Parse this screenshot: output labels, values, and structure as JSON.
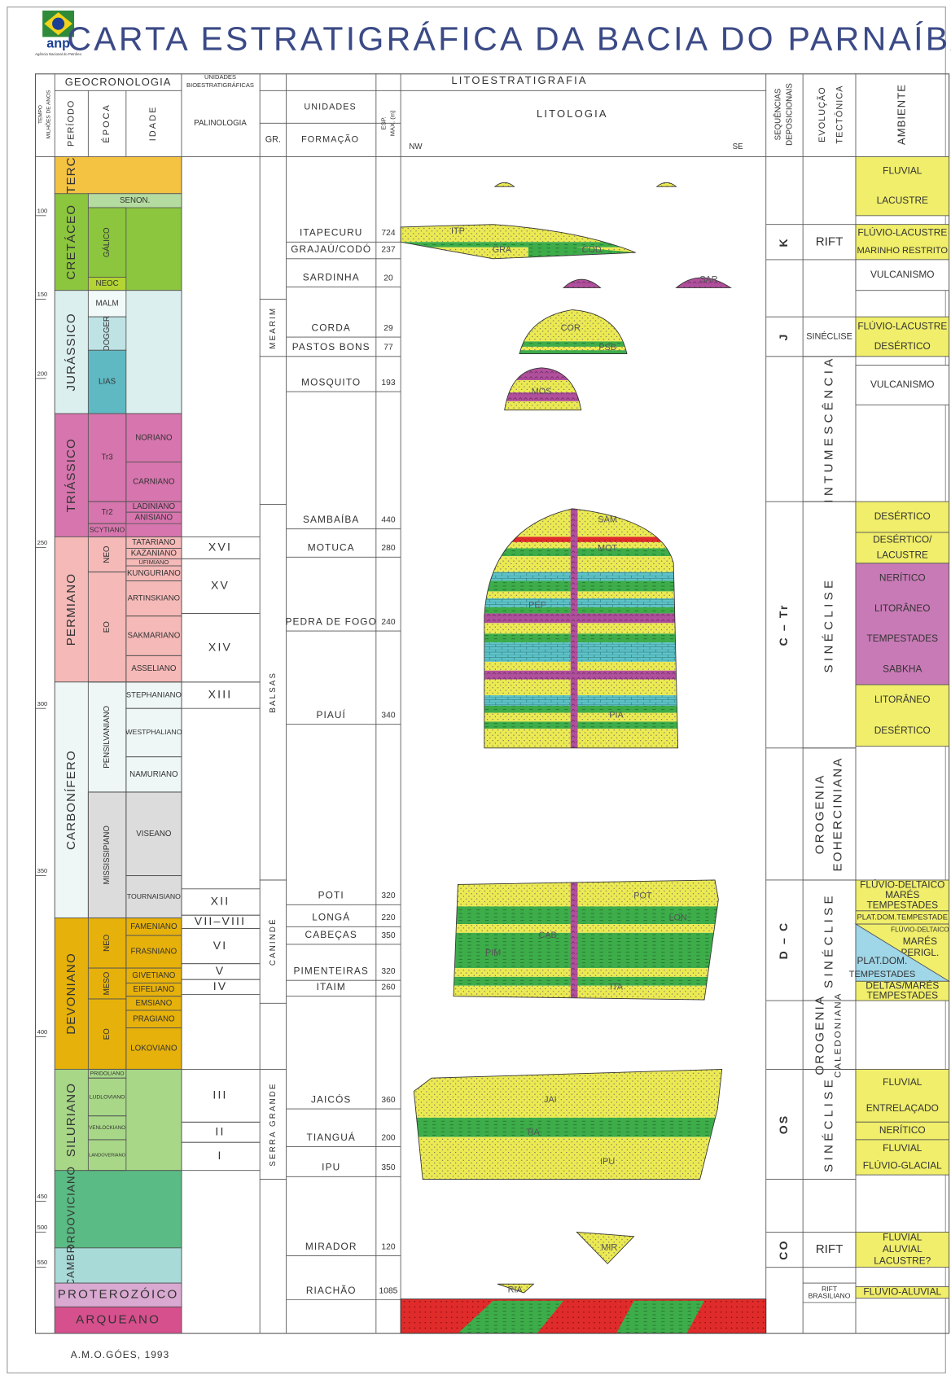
{
  "header": {
    "logo": "anp",
    "logo_caption": "Agência Nacional do Petróleo",
    "title": "CARTA ESTRATIGRÁFICA DA BACIA DO PARNAÍBA"
  },
  "columns": {
    "time": [
      "TEMPO",
      "MILHÕES DE ANOS"
    ],
    "geochronology": "GEOCRONOLOGIA",
    "period": "PERÍODO",
    "epoch": "ÉPOCA",
    "age": "IDADE",
    "biostrat": [
      "UNIDADES",
      "BIOESTRATIGRÁFICAS"
    ],
    "palynology": "PALINOLOGIA",
    "lithostrat": "LITOESTRATIGRAFIA",
    "units": "UNIDADES",
    "group": "GR.",
    "formation": "FORMAÇÃO",
    "thickness": [
      "ESP.",
      "MAX. (m)"
    ],
    "lithology": "LITOLOGIA",
    "nw": "NW",
    "se": "SE",
    "sequences": [
      "SEQUÊNCIAS",
      "DEPOSICIONAIS"
    ],
    "tectonic": [
      "EVOLUÇÃO",
      "TECTÔNICA"
    ],
    "environment": "AMBIENTE"
  },
  "age_ticks": [
    100,
    150,
    200,
    250,
    300,
    350,
    400,
    450,
    500,
    550
  ],
  "periods": [
    "TERC",
    "CRETÁCEO",
    "JURÁSSICO",
    "TRIÁSSICO",
    "PERMIANO",
    "CARBONÍFERO",
    "DEVONIANO",
    "SILURIANO",
    "ORDOVICIANO",
    "CAMBR"
  ],
  "epochs": [
    "SENON.",
    "GÁLICO",
    "NEOC",
    "MALM",
    "DOGGER",
    "LIAS",
    "Tr3",
    "Tr2",
    "SCYTIANO",
    "NEO",
    "EO",
    "PENSILVANIANO",
    "MISSISSIPIANO",
    "NEO",
    "MESO",
    "EO",
    "PRIDOLIANO",
    "LUDLOVIANO",
    "VENLOCKIANO",
    "LANDOVERIANO"
  ],
  "ages": [
    "NORIANO",
    "CARNIANO",
    "LADINIANO",
    "ANISIANO",
    "TATARIANO",
    "KAZANIANO",
    "UFIMIANO",
    "KUNGURIANO",
    "ARTINSKIANO",
    "SAKMARIANO",
    "ASSELIANO",
    "STEPHANIANO",
    "WESTPHALIANO",
    "NAMURIANO",
    "VISEANO",
    "TOURNAISIANO",
    "FAMENIANO",
    "FRASNIANO",
    "GIVETIANO",
    "EIFELIANO",
    "EMSIANO",
    "PRAGIANO",
    "LOKOVIANO"
  ],
  "eons": [
    "PROTEROZÓICO",
    "ARQUEANO"
  ],
  "palynology": [
    "XVI",
    "XV",
    "XIV",
    "XIII",
    "XII",
    "VII–VIII",
    "VI",
    "V",
    "IV",
    "III",
    "II",
    "I"
  ],
  "groups": [
    "MEARIM",
    "BALSAS",
    "CANINDÉ",
    "SERRA GRANDE"
  ],
  "formations": [
    {
      "name": "ITAPECURU",
      "thickness": 724
    },
    {
      "name": "GRAJAÚ/CODÓ",
      "thickness": 237
    },
    {
      "name": "SARDINHA",
      "thickness": 20
    },
    {
      "name": "CORDA",
      "thickness": 29
    },
    {
      "name": "PASTOS BONS",
      "thickness": 77
    },
    {
      "name": "MOSQUITO",
      "thickness": 193
    },
    {
      "name": "SAMBAÍBA",
      "thickness": 440
    },
    {
      "name": "MOTUCA",
      "thickness": 280
    },
    {
      "name": "PEDRA DE FOGO",
      "thickness": 240
    },
    {
      "name": "PIAUÍ",
      "thickness": 340
    },
    {
      "name": "POTI",
      "thickness": 320
    },
    {
      "name": "LONGÁ",
      "thickness": 220
    },
    {
      "name": "CABEÇAS",
      "thickness": 350
    },
    {
      "name": "PIMENTEIRAS",
      "thickness": 320
    },
    {
      "name": "ITAIM",
      "thickness": 260
    },
    {
      "name": "JAICÓS",
      "thickness": 360
    },
    {
      "name": "TIANGUÁ",
      "thickness": 200
    },
    {
      "name": "IPU",
      "thickness": 350
    },
    {
      "name": "MIRADOR",
      "thickness": 120
    },
    {
      "name": "RIACHÃO",
      "thickness": 1085
    }
  ],
  "lithology_labels": [
    "ITP",
    "GRA",
    "COD",
    "SAR",
    "COR",
    "PSB",
    "MOS",
    "SAM",
    "MOT",
    "PEF",
    "PIA",
    "POT",
    "LON",
    "CAB",
    "PIM",
    "ITA",
    "JAI",
    "TIA",
    "IPU",
    "MIR",
    "RIA"
  ],
  "sequences": [
    "K",
    "J",
    "C – Tr",
    "D – C",
    "OS",
    "CO"
  ],
  "tectonic": [
    [
      "RIFT"
    ],
    [
      "SINÉCLISE"
    ],
    [
      "INTUMESCÊNCIA"
    ],
    [
      "SINÉCLISE"
    ],
    [
      "OROGENIA",
      "EOHERCINIANA"
    ],
    [
      "SINÉCLISE"
    ],
    [
      "OROGENIA",
      "CALEDONIANA"
    ],
    [
      "SINÉCLISE"
    ],
    [
      "RIFT"
    ],
    [
      "RIFT",
      "BRASILIANO"
    ]
  ],
  "environments": [
    [
      "FLUVIAL",
      "LACUSTRE"
    ],
    [
      "FLÚVIO-LACUSTRE",
      "MARINHO RESTRITO"
    ],
    [
      "VULCANISMO"
    ],
    [
      "FLÚVIO-LACUSTRE",
      "DESÉRTICO"
    ],
    [
      "VULCANISMO"
    ],
    [
      "DESÉRTICO"
    ],
    [
      "DESÉRTICO/",
      "LACUSTRE"
    ],
    [
      "NERÍTICO",
      "LITORÂNEO",
      "TEMPESTADES",
      "SABKHA"
    ],
    [
      "LITORÂNEO",
      "DESÉRTICO"
    ],
    [
      "FLÚVIO-DELTAICO",
      "MARÉS",
      "TEMPESTADES"
    ],
    [
      "PLAT.DOM.TEMPESTADE"
    ],
    [
      "FLÚVIO-DELTAICO",
      "MARÉS",
      "PERIGL."
    ],
    [
      "PLAT.DOM.",
      "TEMPESTADES"
    ],
    [
      "DELTAS/MARÉS",
      "TEMPESTADES"
    ],
    [
      "FLUVIAL",
      "ENTRELAÇADO"
    ],
    [
      "NERÍTICO"
    ],
    [
      "FLUVIAL",
      "FLÚVIO-GLACIAL"
    ],
    [
      "FLUVIAL",
      "ALUVIAL",
      "LACUSTRE?"
    ],
    [
      "FLÚVIO-ALUVIAL"
    ]
  ],
  "footer": "A.M.O.GÓES, 1993"
}
